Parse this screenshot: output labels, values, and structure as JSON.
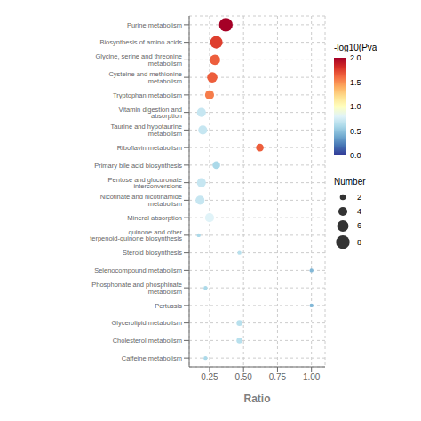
{
  "chart_data": {
    "type": "scatter",
    "categories": [
      "Purine metabolism",
      "Biosynthesis of amino acids",
      "Glycine, serine and threonine metabolism",
      "Cysteine and methionine metabolism",
      "Tryptophan metabolism",
      "Vitamin digestion and absorption",
      "Taurine and hypotaurine metabolism",
      "Riboflavin metabolism",
      "Primary bile acid biosynthesis",
      "Pentose and glucuronate interconversions",
      "Nicotinate and nicotinamide metabolism",
      "Mineral absorption",
      "quinone and other terpenoid-quinone biosynthesis",
      "Steroid biosynthesis",
      "Selenocompound metabolism",
      "Phosphonate and phosphinate metabolism",
      "Pertussis",
      "Glycerolipid metabolism",
      "Cholesterol metabolism",
      "Caffeine metabolism"
    ],
    "values": [
      0.37,
      0.3,
      0.29,
      0.27,
      0.25,
      0.19,
      0.2,
      0.62,
      0.3,
      0.19,
      0.18,
      0.25,
      0.17,
      0.47,
      1.0,
      0.22,
      1.0,
      0.47,
      0.47,
      0.22
    ],
    "neg_log10_pval": [
      2.1,
      1.75,
      1.65,
      1.65,
      1.55,
      0.7,
      0.7,
      1.65,
      0.6,
      0.7,
      0.7,
      0.8,
      0.6,
      0.65,
      0.45,
      0.6,
      0.45,
      0.65,
      0.65,
      0.6
    ],
    "number": [
      8,
      7,
      5,
      5,
      4,
      4,
      4,
      3,
      3,
      4,
      4,
      4,
      1,
      1,
      1,
      1,
      1,
      2,
      2,
      1
    ],
    "xlabel": "Ratio",
    "xlim": [
      0.1,
      1.1
    ],
    "xticks": [
      0.25,
      {
        "value": 0.5,
        "label": "0.50"
      },
      0.75,
      {
        "value": 1,
        "label": "1.00"
      }
    ],
    "grid": true,
    "color_bar": {
      "label": "-log10(Pva",
      "range": [
        0,
        2
      ],
      "ticks": [
        {
          "value": 0,
          "label": "0.0"
        },
        0.5,
        {
          "value": 1,
          "label": "1.0"
        },
        1.5,
        {
          "value": 2,
          "label": "2.0"
        }
      ]
    },
    "size_legend": {
      "title": "Number",
      "values": [
        2,
        4,
        6,
        8
      ]
    }
  }
}
